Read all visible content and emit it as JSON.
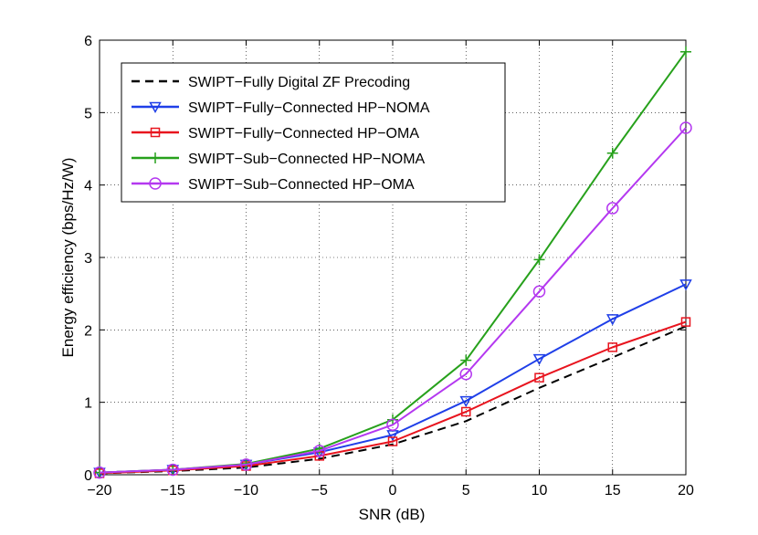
{
  "chart_data": {
    "type": "line",
    "title": "",
    "xlabel": "SNR (dB)",
    "ylabel": "Energy efficiency (bps/Hz/W)",
    "xlim": [
      -20,
      20
    ],
    "ylim": [
      0,
      6
    ],
    "xticks": [
      -20,
      -15,
      -10,
      -5,
      0,
      5,
      10,
      15,
      20
    ],
    "yticks": [
      0,
      1,
      2,
      3,
      4,
      5,
      6
    ],
    "xtick_labels": [
      "−20",
      "−15",
      "−10",
      "−5",
      "0",
      "5",
      "10",
      "15",
      "20"
    ],
    "ytick_labels": [
      "0",
      "1",
      "2",
      "3",
      "4",
      "5",
      "6"
    ],
    "grid": true,
    "legend_position": "top-left",
    "x": [
      -20,
      -15,
      -10,
      -5,
      0,
      5,
      10,
      15,
      20
    ],
    "series": [
      {
        "name": "SWIPT−Fully Digital ZF Precoding",
        "color": "#000000",
        "dash": "dashed",
        "marker": "none",
        "values": [
          0.02,
          0.05,
          0.1,
          0.22,
          0.42,
          0.74,
          1.2,
          1.62,
          2.05
        ]
      },
      {
        "name": "SWIPT−Fully−Connected HP−NOMA",
        "color": "#1f3fe8",
        "dash": "solid",
        "marker": "triangle-down",
        "values": [
          0.03,
          0.07,
          0.14,
          0.31,
          0.55,
          1.02,
          1.6,
          2.15,
          2.63
        ]
      },
      {
        "name": "SWIPT−Fully−Connected HP−OMA",
        "color": "#e8141e",
        "dash": "solid",
        "marker": "square",
        "values": [
          0.02,
          0.06,
          0.12,
          0.26,
          0.46,
          0.87,
          1.34,
          1.76,
          2.11
        ]
      },
      {
        "name": "SWIPT−Sub−Connected HP−NOMA",
        "color": "#27a11c",
        "dash": "solid",
        "marker": "plus",
        "values": [
          0.03,
          0.07,
          0.15,
          0.36,
          0.76,
          1.58,
          2.97,
          4.44,
          5.84
        ]
      },
      {
        "name": "SWIPT−Sub−Connected HP−OMA",
        "color": "#b438f0",
        "dash": "solid",
        "marker": "circle",
        "values": [
          0.03,
          0.07,
          0.14,
          0.33,
          0.69,
          1.39,
          2.53,
          3.68,
          4.79
        ]
      }
    ]
  }
}
